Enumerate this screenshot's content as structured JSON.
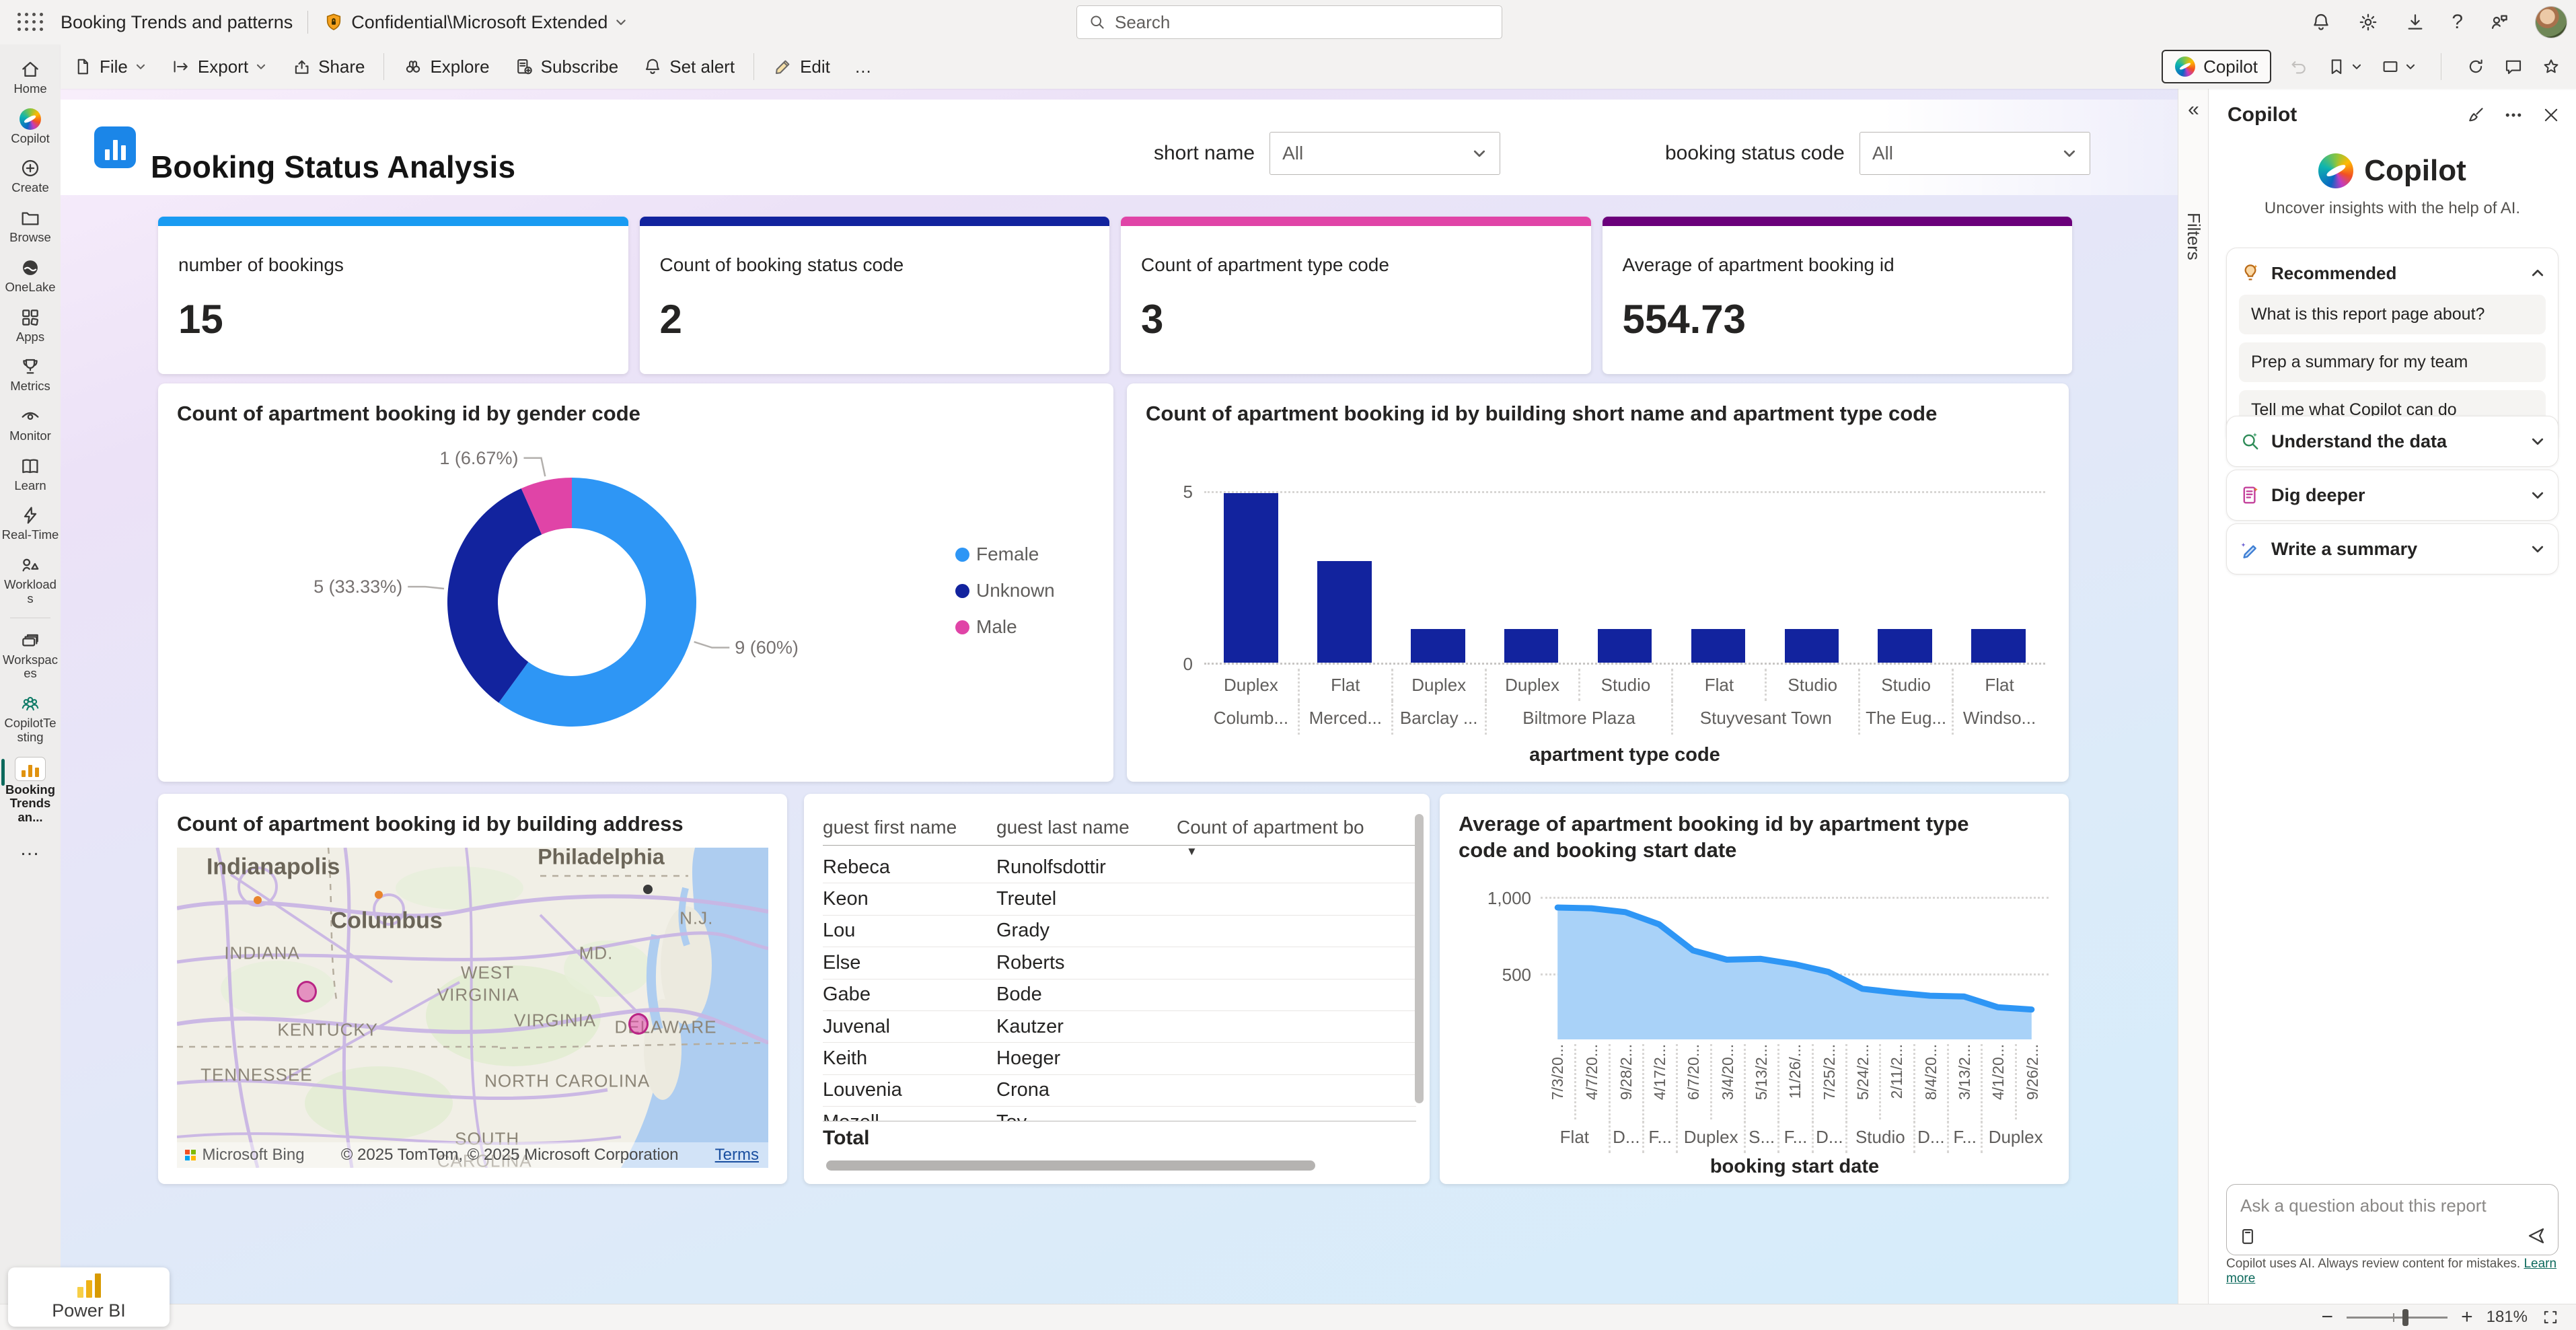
{
  "top_bar": {
    "report_name": "Booking Trends and patterns",
    "sensitivity_label": "Confidential\\Microsoft Extended",
    "search_placeholder": "Search"
  },
  "toolbar": {
    "file": "File",
    "export": "Export",
    "share": "Share",
    "explore": "Explore",
    "subscribe": "Subscribe",
    "set_alert": "Set alert",
    "edit": "Edit",
    "more": "…",
    "copilot": "Copilot"
  },
  "sidebar": {
    "items": [
      {
        "label": "Home",
        "icon": "home"
      },
      {
        "label": "Copilot",
        "icon": "copilot"
      },
      {
        "label": "Create",
        "icon": "create"
      },
      {
        "label": "Browse",
        "icon": "browse"
      },
      {
        "label": "OneLake",
        "icon": "onelake"
      },
      {
        "label": "Apps",
        "icon": "apps"
      },
      {
        "label": "Metrics",
        "icon": "metrics"
      },
      {
        "label": "Monitor",
        "icon": "monitor"
      },
      {
        "label": "Learn",
        "icon": "learn"
      },
      {
        "label": "Real-Time",
        "icon": "realtime"
      },
      {
        "label": "Workloads",
        "icon": "workloads"
      },
      {
        "divider": true
      },
      {
        "label": "Workspaces",
        "icon": "workspaces"
      },
      {
        "label": "CopilotTesting",
        "icon": "peopleteal"
      },
      {
        "label": "Booking Trends an...",
        "icon": "report",
        "active": true
      },
      {
        "more": "…"
      }
    ],
    "power_bi": "Power BI"
  },
  "report_header": {
    "title": "Booking Status Analysis",
    "filters": [
      {
        "label": "short name",
        "value": "All"
      },
      {
        "label": "booking status code",
        "value": "All"
      }
    ]
  },
  "kpis": [
    {
      "label": "number of bookings",
      "value": "15",
      "accent": "#199BF2"
    },
    {
      "label": "Count of booking status code",
      "value": "2",
      "accent": "#12239E"
    },
    {
      "label": "Count of apartment type code",
      "value": "3",
      "accent": "#E044A7"
    },
    {
      "label": "Average of apartment booking id",
      "value": "554.73",
      "accent": "#6B007B"
    }
  ],
  "chart_data": {
    "donut": {
      "type": "pie",
      "title": "Count of apartment booking id by gender code",
      "slices": [
        {
          "name": "Female",
          "value": 9,
          "label": "9 (60%)",
          "color": "#2E96F5"
        },
        {
          "name": "Unknown",
          "value": 5,
          "label": "5 (33.33%)",
          "color": "#12239E"
        },
        {
          "name": "Male",
          "value": 1,
          "label": "1 (6.67%)",
          "color": "#E044A7"
        }
      ],
      "legend_position": "right"
    },
    "bar_chart": {
      "type": "bar",
      "title": "Count of apartment booking id by building short name and apartment type code",
      "xlabel": "apartment type code",
      "ylim": [
        0,
        5
      ],
      "y_ticks": [
        "5",
        "0"
      ],
      "bar_color": "#12239E",
      "categories": [
        "Duplex",
        "Flat",
        "Duplex",
        "Duplex",
        "Studio",
        "Flat",
        "Studio",
        "Studio",
        "Flat"
      ],
      "values": [
        5,
        3,
        1,
        1,
        1,
        1,
        1,
        1,
        1
      ],
      "groups": [
        {
          "label": "Columb...",
          "span": 1
        },
        {
          "label": "Merced...",
          "span": 1
        },
        {
          "label": "Barclay ...",
          "span": 1
        },
        {
          "label": "Biltmore Plaza",
          "span": 2
        },
        {
          "label": "Stuyvesant Town",
          "span": 2
        },
        {
          "label": "The Eug...",
          "span": 1
        },
        {
          "label": "Windso...",
          "span": 1
        }
      ]
    },
    "map": {
      "title": "Count of apartment booking id by building address",
      "brand": "Microsoft Bing",
      "attribution": "© 2025 TomTom, © 2025 Microsoft Corporation",
      "terms": "Terms",
      "labels": [
        {
          "text": "Indianapolis",
          "x": 5,
          "y": 6,
          "size": 34,
          "city": true
        },
        {
          "text": "Columbus",
          "x": 26,
          "y": 23,
          "size": 34,
          "city": true
        },
        {
          "text": "Philadelphia",
          "x": 61,
          "y": 3,
          "size": 32,
          "city": true
        },
        {
          "text": "INDIANA",
          "x": 8,
          "y": 33,
          "size": 26
        },
        {
          "text": "MD.",
          "x": 68,
          "y": 33,
          "size": 26
        },
        {
          "text": "N.J.",
          "x": 85,
          "y": 22,
          "size": 26
        },
        {
          "text": "WEST",
          "x": 48,
          "y": 39,
          "size": 26
        },
        {
          "text": "VIRGINIA",
          "x": 44,
          "y": 46,
          "size": 26
        },
        {
          "text": "DELAWARE",
          "x": 74,
          "y": 56,
          "size": 26
        },
        {
          "text": "KENTUCKY",
          "x": 17,
          "y": 57,
          "size": 26
        },
        {
          "text": "VIRGINIA",
          "x": 57,
          "y": 54,
          "size": 26
        },
        {
          "text": "TENNESSEE",
          "x": 4,
          "y": 71,
          "size": 26
        },
        {
          "text": "NORTH CAROLINA",
          "x": 52,
          "y": 73,
          "size": 26
        },
        {
          "text": "SOUTH",
          "x": 47,
          "y": 91,
          "size": 26
        },
        {
          "text": "CAROLINA",
          "x": 44,
          "y": 98,
          "size": 26
        }
      ],
      "bubbles": [
        {
          "x": 22,
          "y": 45
        },
        {
          "x": 78,
          "y": 55
        }
      ]
    },
    "table": {
      "headers": [
        "guest first name",
        "guest last name",
        "Count of apartment bo"
      ],
      "rows": [
        [
          "Rebeca",
          "Runolfsdottir"
        ],
        [
          "Keon",
          "Treutel"
        ],
        [
          "Lou",
          "Grady"
        ],
        [
          "Else",
          "Roberts"
        ],
        [
          "Gabe",
          "Bode"
        ],
        [
          "Juvenal",
          "Kautzer"
        ],
        [
          "Keith",
          "Hoeger"
        ],
        [
          "Louvenia",
          "Crona"
        ],
        [
          "Mozell",
          "Toy"
        ]
      ],
      "total_label": "Total",
      "sort_indicator": "▼"
    },
    "line_chart": {
      "type": "area",
      "title": "Average of apartment booking id by apartment type code and booking start date",
      "xlabel": "booking start date",
      "y_ticks": [
        "1,000",
        "500"
      ],
      "ylim_top": 1000,
      "line_color": "#2E96F5",
      "fill_color": "#A9D2F8",
      "x": [
        "7/3/20...",
        "4/7/20...",
        "9/28/2...",
        "4/17/2...",
        "6/7/20...",
        "3/4/20...",
        "5/13/2...",
        "11/26/...",
        "7/25/2...",
        "5/24/2...",
        "2/11/2...",
        "8/4/20...",
        "3/13/2...",
        "4/1/20...",
        "9/26/2..."
      ],
      "values": [
        930,
        925,
        900,
        820,
        650,
        590,
        595,
        560,
        510,
        400,
        375,
        355,
        350,
        280,
        265
      ],
      "groups": [
        {
          "label": "Flat",
          "span": 2
        },
        {
          "label": "D...",
          "span": 1
        },
        {
          "label": "F...",
          "span": 1
        },
        {
          "label": "Duplex",
          "span": 2
        },
        {
          "label": "S...",
          "span": 1
        },
        {
          "label": "F...",
          "span": 1
        },
        {
          "label": "D...",
          "span": 1
        },
        {
          "label": "Studio",
          "span": 2
        },
        {
          "label": "D...",
          "span": 1
        },
        {
          "label": "F...",
          "span": 1
        },
        {
          "label": "Duplex",
          "span": 2
        }
      ]
    }
  },
  "copilot": {
    "pane_title": "Copilot",
    "hero_title": "Copilot",
    "tagline": "Uncover insights with the help of AI.",
    "recommended": {
      "header": "Recommended",
      "suggestions": [
        "What is this report page about?",
        "Prep a summary for my team",
        "Tell me what Copilot can do"
      ]
    },
    "sections": [
      {
        "label": "Understand the data",
        "icon": "magnifygreen"
      },
      {
        "label": "Dig deeper",
        "icon": "docpink"
      },
      {
        "label": "Write a summary",
        "icon": "penblue"
      }
    ],
    "input_placeholder": "Ask a question about this report",
    "disclaimer": "Copilot uses AI. Always review content for mistakes.",
    "learn_more": "Learn more"
  },
  "filters_pane": {
    "label": "Filters"
  },
  "status_bar": {
    "zoom": "181%"
  }
}
